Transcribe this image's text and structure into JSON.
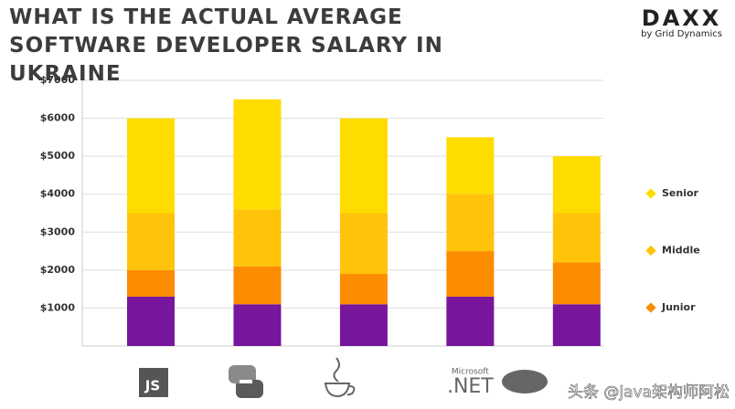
{
  "chart_data": {
    "type": "stacked_bar",
    "title": "WHAT IS THE ACTUAL AVERAGE SOFTWARE DEVELOPER SALARY IN UKRAINE",
    "brand": "DAXX",
    "brand_subtitle": "by Grid Dynamics",
    "categories": [
      "JS",
      null,
      null,
      ".NET",
      "php"
    ],
    "annotations": [
      {
        "text": "Microsoft"
      }
    ],
    "watermark": "头条 @java架构师阿松",
    "series": [
      {
        "name": null,
        "color": "#77169c",
        "values": [
          1300,
          1100,
          1100,
          1300,
          1100
        ]
      },
      {
        "name": "Junior",
        "color": "#fc8c00",
        "values": [
          700,
          1000,
          800,
          1200,
          1100
        ]
      },
      {
        "name": "Middle",
        "color": "#ffc30a",
        "values": [
          1500,
          1500,
          1600,
          1500,
          1300
        ]
      },
      {
        "name": "Senior",
        "color": "#ffdc00",
        "values": [
          2500,
          2900,
          2500,
          1500,
          1500
        ]
      }
    ],
    "ylim": [
      0,
      7000
    ],
    "yticks": [
      {
        "value": 1000,
        "label": "$1000"
      },
      {
        "value": 2000,
        "label": "$2000"
      },
      {
        "value": 3000,
        "label": "$3000"
      },
      {
        "value": 4000,
        "label": "$4000"
      },
      {
        "value": 5000,
        "label": "$5000"
      },
      {
        "value": 6000,
        "label": "$6000"
      },
      {
        "value": 7000,
        "label": "$7000"
      }
    ],
    "grid": true,
    "legend": "right"
  }
}
